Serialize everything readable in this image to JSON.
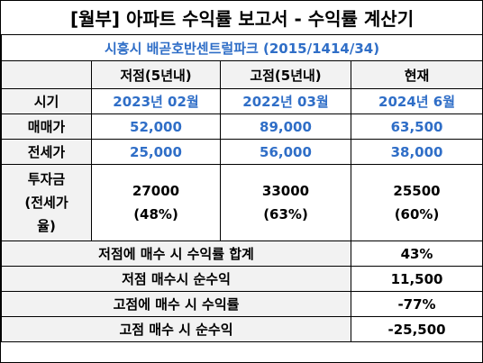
{
  "title": "[월부] 아파트 수익률 보고서 - 수익률 계산기",
  "subtitle": "시흥시 배곧호반센트럴파크 (2015/1414/34)",
  "columns": {
    "low": "저점(5년내)",
    "high": "고점(5년내)",
    "now": "현재"
  },
  "rows": {
    "period": {
      "label": "시기",
      "low": "2023년 02월",
      "high": "2022년 03월",
      "now": "2024년 6월"
    },
    "sale": {
      "label": "매매가",
      "low": "52,000",
      "high": "89,000",
      "now": "63,500"
    },
    "jeonse": {
      "label": "전세가",
      "low": "25,000",
      "high": "56,000",
      "now": "38,000"
    },
    "investment": {
      "label_line1": "투자금",
      "label_line2": "(전세가",
      "label_line3": "율)",
      "low_amount": "27000",
      "low_ratio": "(48%)",
      "high_amount": "33000",
      "high_ratio": "(63%)",
      "now_amount": "25500",
      "now_ratio": "(60%)"
    }
  },
  "summary": [
    {
      "label": "저점에 매수 시 수익률 합계",
      "value": "43%"
    },
    {
      "label": "저점 매수시 순수익",
      "value": "11,500"
    },
    {
      "label": "고점에 매수 시 수익률",
      "value": "-77%"
    },
    {
      "label": "고점 매수 시 순수익",
      "value": "-25,500"
    }
  ],
  "colors": {
    "accent_blue": "#2f6ec7",
    "label_shade": "#f2f2f2"
  }
}
